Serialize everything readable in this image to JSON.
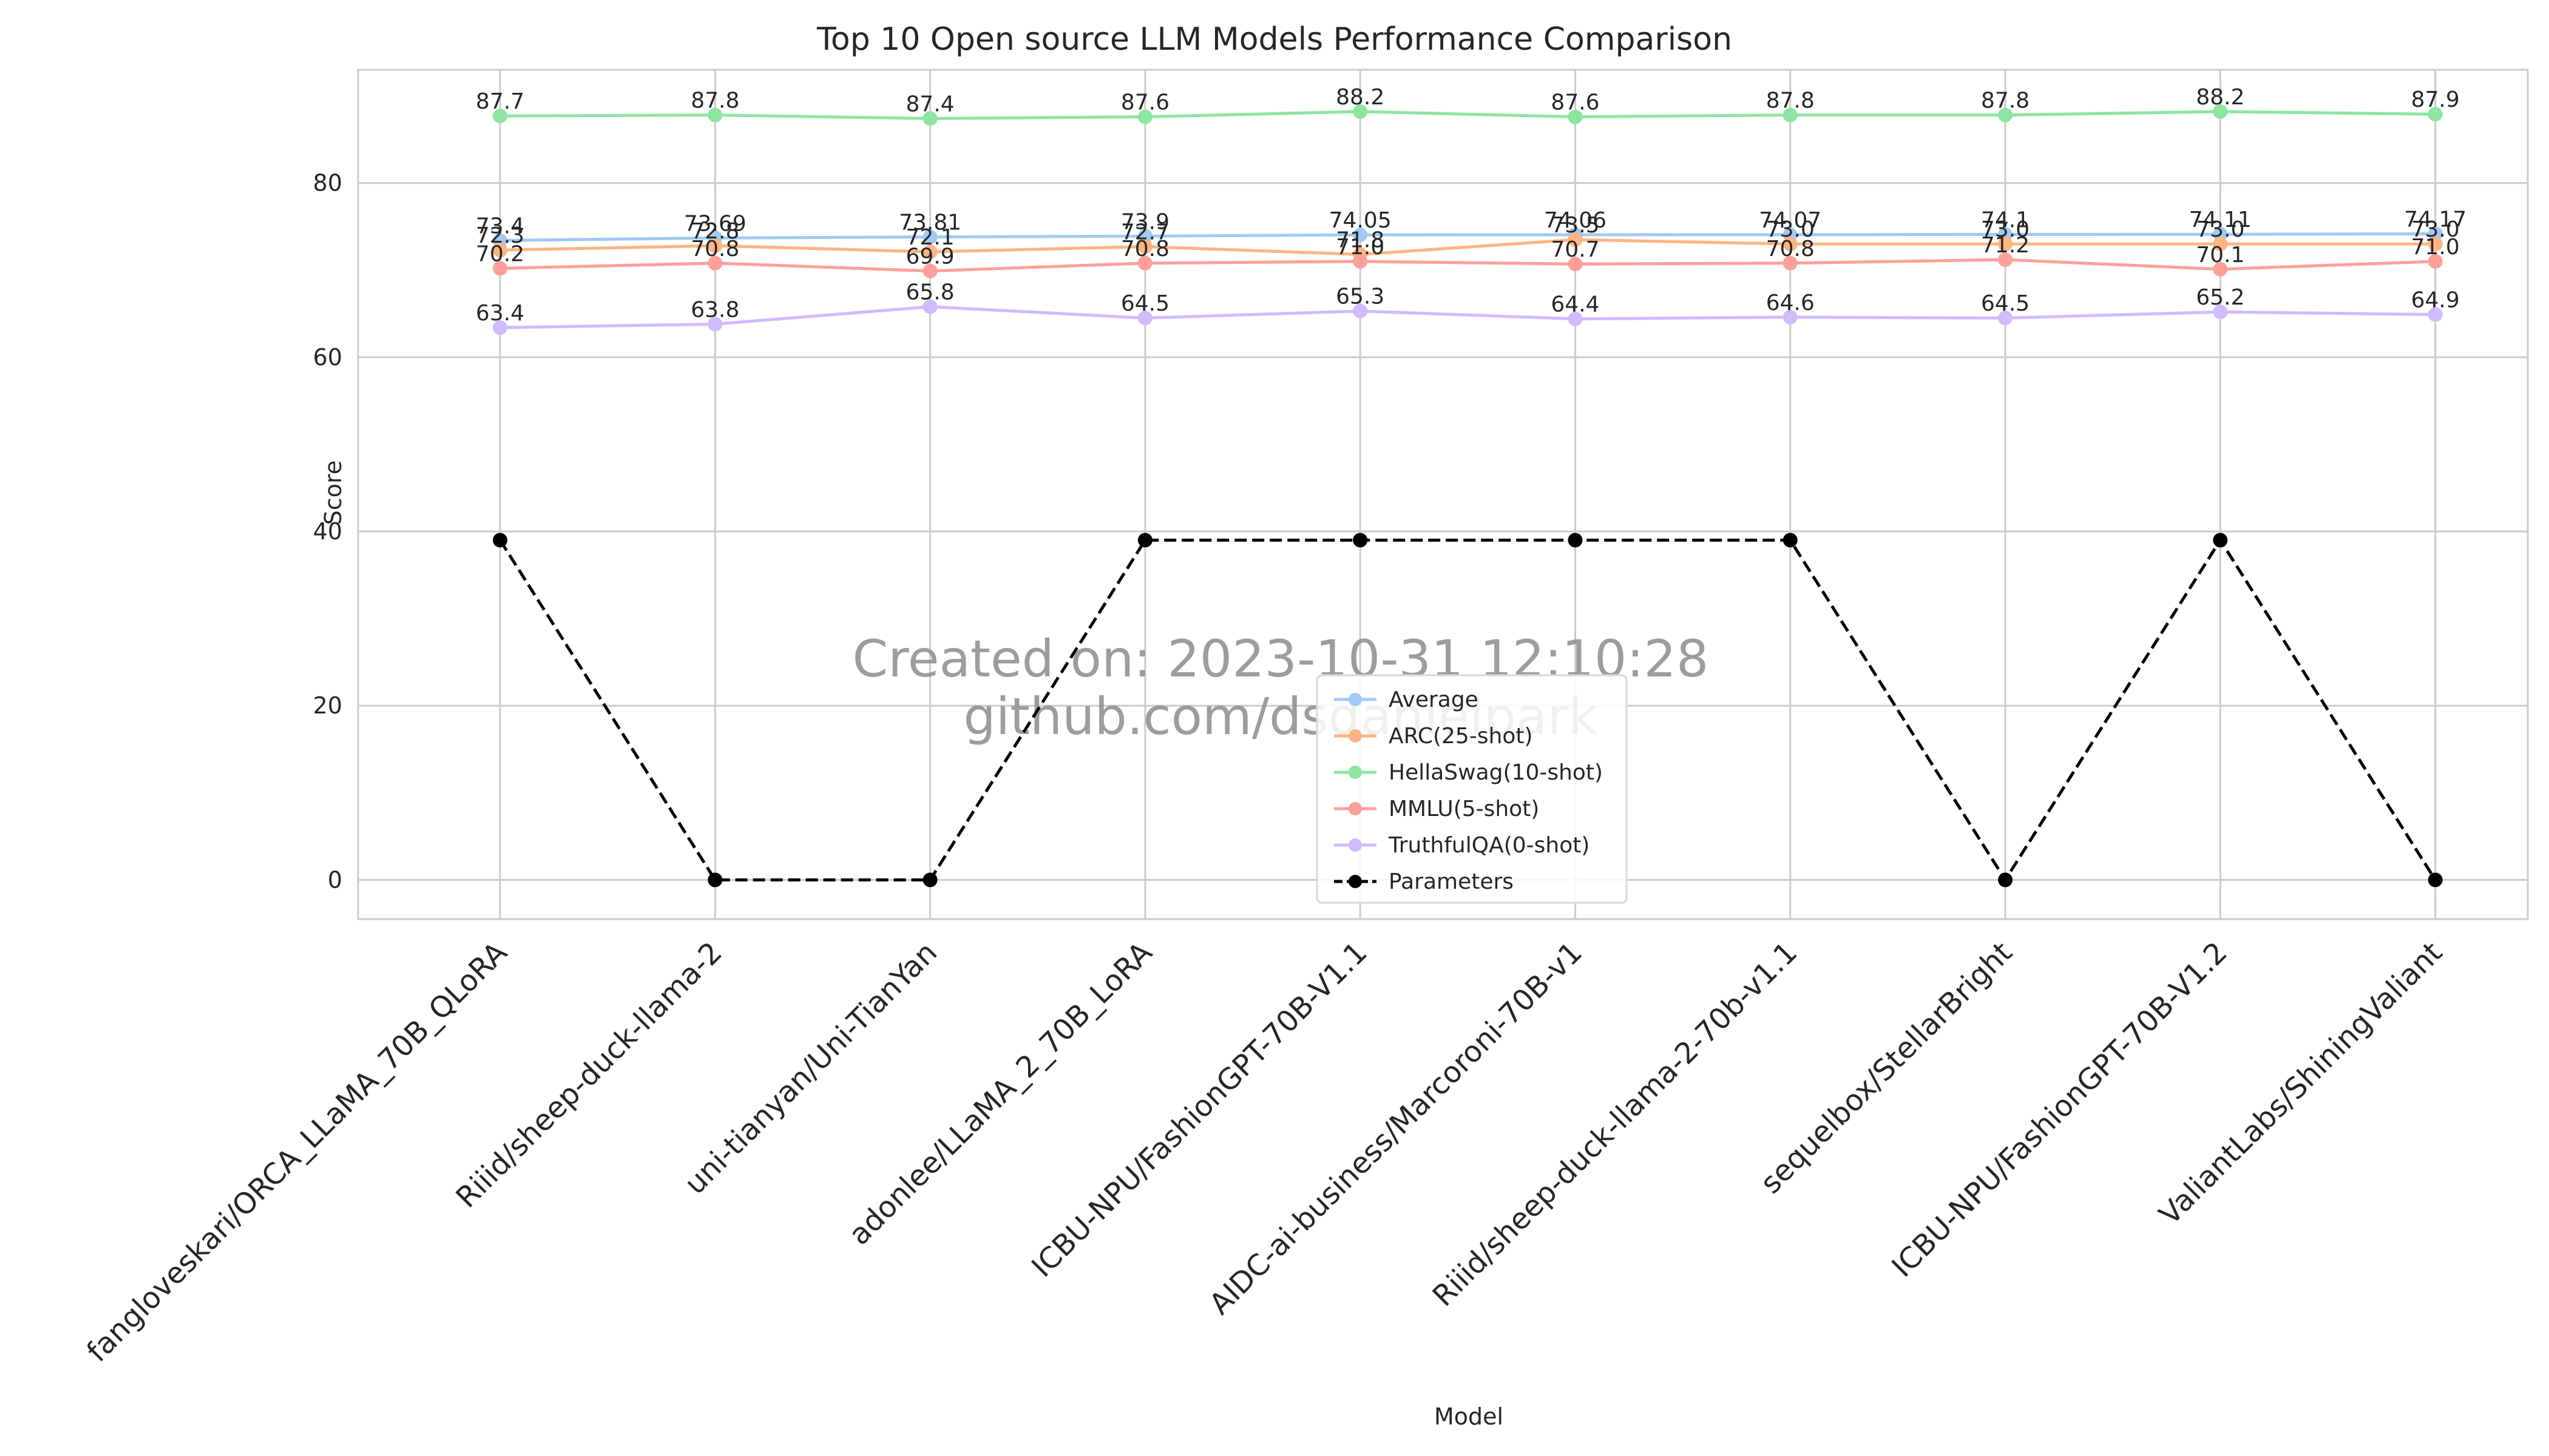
{
  "chart_data": {
    "type": "line",
    "title": "Top 10 Open source LLM Models Performance Comparison",
    "xlabel": "Model",
    "ylabel": "Score",
    "ylim": [
      -4.5,
      93
    ],
    "yticks": [
      0,
      20,
      40,
      60,
      80
    ],
    "grid": true,
    "legend_position": "lower-center",
    "categories": [
      "fangloveskari/ORCA_LLaMA_70B_QLoRA",
      "Riiid/sheep-duck-llama-2",
      "uni-tianyan/Uni-TianYan",
      "adonlee/LLaMA_2_70B_LoRA",
      "ICBU-NPU/FashionGPT-70B-V1.1",
      "AIDC-ai-business/Marcoroni-70B-v1",
      "Riiid/sheep-duck-llama-2-70b-v1.1",
      "sequelbox/StellarBright",
      "ICBU-NPU/FashionGPT-70B-V1.2",
      "ValiantLabs/ShiningValiant"
    ],
    "series": [
      {
        "name": "Average",
        "color": "#a1c9f4",
        "values": [
          73.4,
          73.69,
          73.81,
          73.9,
          74.05,
          74.06,
          74.07,
          74.1,
          74.11,
          74.17
        ],
        "labels": [
          "73.4",
          "73.69",
          "73.81",
          "73.9",
          "74.05",
          "74.06",
          "74.07",
          "74.1",
          "74.11",
          "74.17"
        ],
        "dashed": false
      },
      {
        "name": "ARC(25-shot)",
        "color": "#ffb482",
        "values": [
          72.3,
          72.8,
          72.1,
          72.7,
          71.8,
          73.5,
          73.0,
          73.0,
          73.0,
          73.0
        ],
        "labels": [
          "72.3",
          "72.8",
          "72.1",
          "72.7",
          "71.8",
          "73.5",
          "73.0",
          "73.0",
          "73.0",
          "73.0"
        ],
        "dashed": false
      },
      {
        "name": "HellaSwag(10-shot)",
        "color": "#8de5a1",
        "values": [
          87.7,
          87.8,
          87.4,
          87.6,
          88.2,
          87.6,
          87.8,
          87.8,
          88.2,
          87.9
        ],
        "labels": [
          "87.7",
          "87.8",
          "87.4",
          "87.6",
          "88.2",
          "87.6",
          "87.8",
          "87.8",
          "88.2",
          "87.9"
        ],
        "dashed": false
      },
      {
        "name": "MMLU(5-shot)",
        "color": "#ff9f9b",
        "values": [
          70.2,
          70.8,
          69.9,
          70.8,
          71.0,
          70.7,
          70.8,
          71.2,
          70.1,
          71.0
        ],
        "labels": [
          "70.2",
          "70.8",
          "69.9",
          "70.8",
          "71.0",
          "70.7",
          "70.8",
          "71.2",
          "70.1",
          "71.0"
        ],
        "dashed": false
      },
      {
        "name": "TruthfulQA(0-shot)",
        "color": "#d0bbff",
        "values": [
          63.4,
          63.8,
          65.8,
          64.5,
          65.3,
          64.4,
          64.6,
          64.5,
          65.2,
          64.9
        ],
        "labels": [
          "63.4",
          "63.8",
          "65.8",
          "64.5",
          "65.3",
          "64.4",
          "64.6",
          "64.5",
          "65.2",
          "64.9"
        ],
        "dashed": false
      },
      {
        "name": "Parameters",
        "color": "#000000",
        "values": [
          39,
          0,
          0,
          39,
          39,
          39,
          39,
          0,
          39,
          0
        ],
        "labels": [],
        "dashed": true
      }
    ],
    "watermark": [
      "Created on: 2023-10-31 12:10:28",
      "github.com/dsdanielpark"
    ]
  }
}
